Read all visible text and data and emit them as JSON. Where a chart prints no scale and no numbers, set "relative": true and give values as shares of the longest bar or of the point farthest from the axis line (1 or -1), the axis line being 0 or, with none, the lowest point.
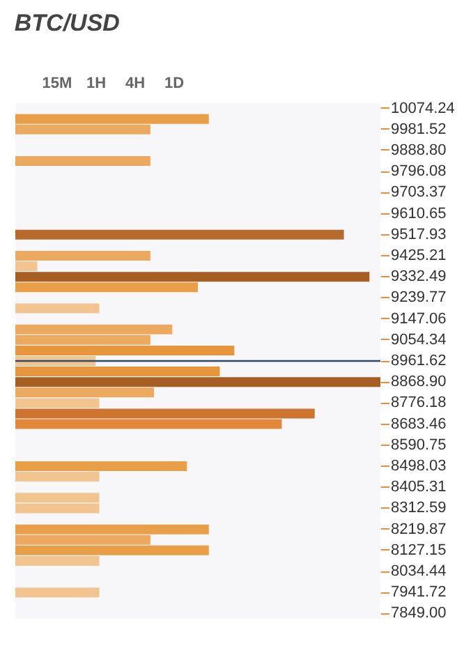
{
  "chart_data": {
    "type": "bar",
    "orientation": "horizontal",
    "relative": true,
    "title": "BTC/USD",
    "annotations": [
      "15M",
      "1H",
      "4H",
      "1D"
    ],
    "categories": [
      "10074.24",
      null,
      "9981.52",
      null,
      "9888.80",
      null,
      "9796.08",
      null,
      "9703.37",
      null,
      "9610.65",
      null,
      "9517.93",
      null,
      "9425.21",
      null,
      "9332.49",
      null,
      "9239.77",
      null,
      "9147.06",
      null,
      "9054.34",
      null,
      "8961.62",
      null,
      "8868.90",
      null,
      "8776.18",
      null,
      "8683.46",
      null,
      "8590.75",
      null,
      "8498.03",
      null,
      "8405.31",
      null,
      "8312.59",
      null,
      "8219.87",
      null,
      "8127.15",
      null,
      "8034.44",
      null,
      "7941.72",
      null,
      "7849.00"
    ],
    "values": [
      null,
      0.53,
      0.37,
      null,
      null,
      0.37,
      null,
      null,
      null,
      null,
      null,
      null,
      0.9,
      null,
      0.37,
      0.06,
      0.97,
      0.5,
      null,
      0.23,
      null,
      0.43,
      0.37,
      0.6,
      0.22,
      0.56,
      1,
      0.38,
      0.23,
      0.82,
      0.73,
      null,
      null,
      null,
      0.47,
      0.23,
      null,
      0.23,
      0.23,
      null,
      0.53,
      0.37,
      0.53,
      0.23,
      null,
      null,
      0.23,
      null,
      null
    ],
    "colors": [
      null,
      "#e99f48",
      "#ebaa5f",
      null,
      null,
      "#ebaa5f",
      null,
      null,
      null,
      null,
      null,
      null,
      "#b86a2c",
      null,
      "#ebaa5f",
      "#f2c48f",
      "#a65e23",
      "#e99f48",
      null,
      "#f2c48f",
      null,
      "#ebaa5f",
      "#ebaa5f",
      "#e8963d",
      "#f2c48f",
      "#e8963d",
      "#a65e23",
      "#ebaa5f",
      "#f2c48f",
      "#cd7530",
      "#e3883a",
      null,
      null,
      null,
      "#e99f48",
      "#f2c48f",
      null,
      "#f2c48f",
      "#f2c48f",
      null,
      "#e99f48",
      "#ebaa5f",
      "#e99f48",
      "#f2c48f",
      null,
      null,
      "#f2c48f",
      null,
      null
    ],
    "ref_lines": [
      {
        "axis": "y",
        "value": "8961.62",
        "color": "#2d4a6b"
      }
    ]
  }
}
